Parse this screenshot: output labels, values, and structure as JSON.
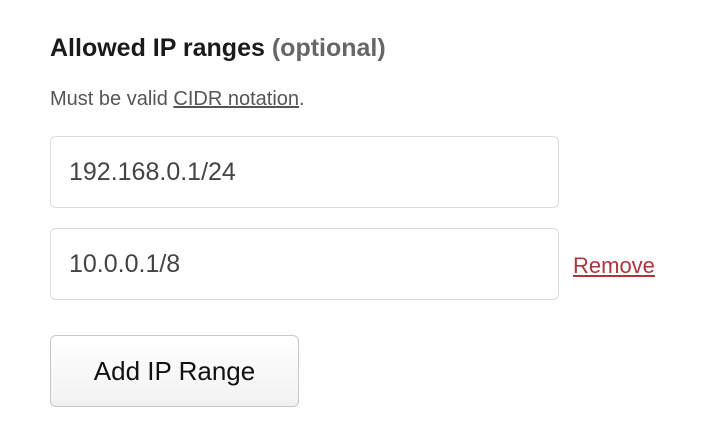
{
  "field": {
    "label": "Allowed IP ranges",
    "optional": "(optional)",
    "help_prefix": "Must be valid ",
    "help_link": "CIDR notation",
    "help_suffix": "."
  },
  "ip_ranges": [
    {
      "value": "192.168.0.1/24"
    },
    {
      "value": "10.0.0.1/8",
      "remove_label": "Remove"
    }
  ],
  "add_button_label": "Add IP Range",
  "colors": {
    "remove_link": "#b0343c"
  }
}
